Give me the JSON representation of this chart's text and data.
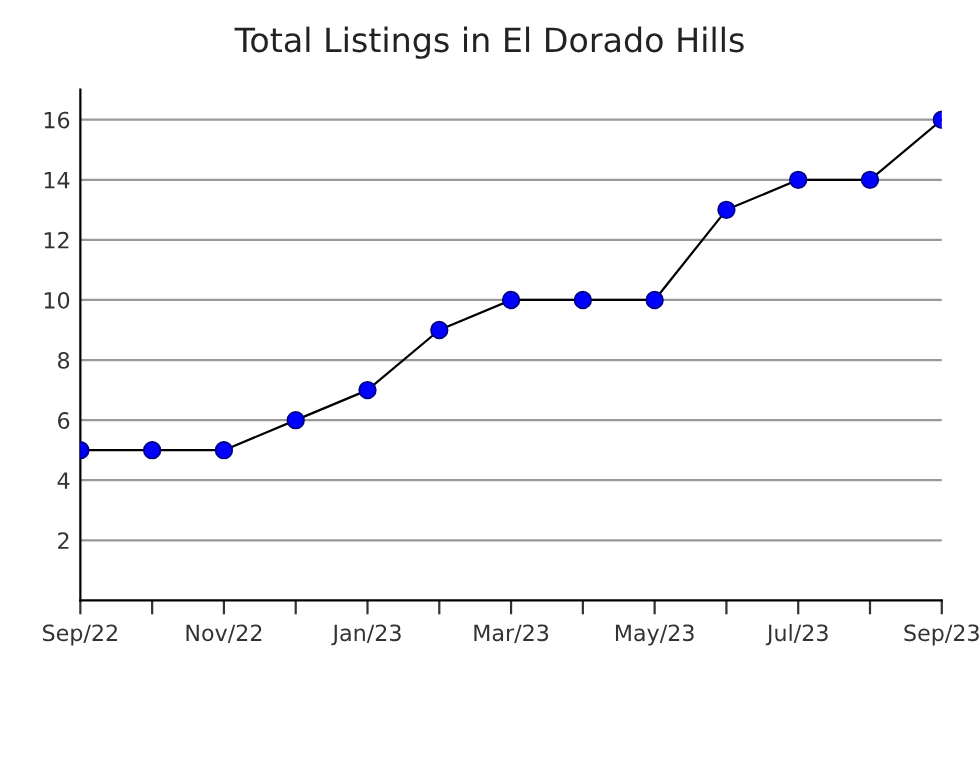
{
  "chart_data": {
    "type": "line",
    "title": "Total Listings in El Dorado Hills",
    "categories": [
      "Sep/22",
      null,
      "Nov/22",
      null,
      "Jan/23",
      null,
      "Mar/23",
      null,
      "May/23",
      null,
      "Jul/23",
      null,
      "Sep/23"
    ],
    "series": [
      {
        "color": "#0000ff",
        "values": [
          5,
          5,
          5,
          6,
          7,
          9,
          10,
          10,
          10,
          13,
          14,
          14,
          16
        ]
      }
    ],
    "ylim": [
      0,
      17
    ],
    "yticks": [
      2,
      4,
      6,
      8,
      10,
      12,
      14,
      16
    ],
    "grid": "y",
    "marker": "circle",
    "line_style": "solid"
  }
}
